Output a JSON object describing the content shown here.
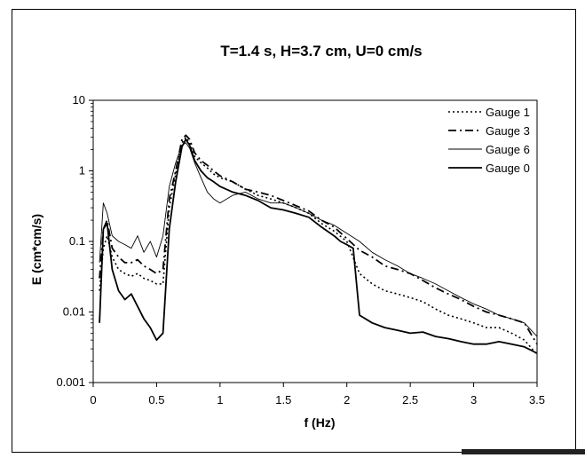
{
  "chart_data": {
    "type": "line",
    "title": "T=1.4 s, H=3.7 cm, U=0 cm/s",
    "xlabel": "f (Hz)",
    "ylabel": "E (cm*cm/s)",
    "xlim": [
      0,
      3.5
    ],
    "ylim": [
      0.001,
      10
    ],
    "yscale": "log",
    "x_ticks": [
      "0",
      "0.5",
      "1",
      "1.5",
      "2",
      "2.5",
      "3",
      "3.5"
    ],
    "y_ticks": [
      "0.001",
      "0.01",
      "0.1",
      "1",
      "10"
    ],
    "grid": false,
    "legend_position": "top-right",
    "series": [
      {
        "name": "Gauge 1",
        "style": "dotted",
        "x": [
          0.05,
          0.08,
          0.11,
          0.15,
          0.2,
          0.25,
          0.3,
          0.35,
          0.4,
          0.45,
          0.5,
          0.55,
          0.6,
          0.65,
          0.7,
          0.73,
          0.76,
          0.8,
          0.85,
          0.9,
          0.95,
          1.0,
          1.1,
          1.2,
          1.3,
          1.4,
          1.5,
          1.6,
          1.7,
          1.8,
          1.9,
          2.0,
          2.1,
          2.2,
          2.3,
          2.4,
          2.5,
          2.6,
          2.7,
          2.8,
          2.9,
          3.0,
          3.1,
          3.2,
          3.3,
          3.4,
          3.5
        ],
        "y": [
          0.02,
          0.08,
          0.12,
          0.06,
          0.04,
          0.035,
          0.032,
          0.035,
          0.03,
          0.028,
          0.025,
          0.025,
          0.3,
          0.9,
          2.5,
          3.0,
          2.5,
          1.6,
          1.3,
          1.1,
          0.9,
          0.8,
          0.7,
          0.55,
          0.45,
          0.4,
          0.35,
          0.3,
          0.25,
          0.18,
          0.14,
          0.1,
          0.035,
          0.025,
          0.02,
          0.018,
          0.016,
          0.014,
          0.011,
          0.009,
          0.008,
          0.007,
          0.006,
          0.006,
          0.005,
          0.004,
          0.0025
        ]
      },
      {
        "name": "Gauge 3",
        "style": "dashed",
        "x": [
          0.05,
          0.08,
          0.11,
          0.15,
          0.2,
          0.25,
          0.3,
          0.35,
          0.4,
          0.45,
          0.5,
          0.55,
          0.6,
          0.65,
          0.7,
          0.73,
          0.76,
          0.8,
          0.85,
          0.9,
          0.95,
          1.0,
          1.1,
          1.2,
          1.3,
          1.4,
          1.5,
          1.6,
          1.7,
          1.8,
          1.9,
          2.0,
          2.1,
          2.2,
          2.3,
          2.4,
          2.5,
          2.6,
          2.7,
          2.8,
          2.9,
          3.0,
          3.1,
          3.2,
          3.3,
          3.4,
          3.5
        ],
        "y": [
          0.03,
          0.15,
          0.2,
          0.08,
          0.06,
          0.05,
          0.05,
          0.055,
          0.045,
          0.04,
          0.035,
          0.04,
          0.4,
          1.0,
          2.8,
          3.2,
          2.8,
          1.8,
          1.4,
          1.2,
          1.0,
          0.85,
          0.7,
          0.55,
          0.5,
          0.45,
          0.38,
          0.32,
          0.27,
          0.2,
          0.16,
          0.11,
          0.075,
          0.06,
          0.045,
          0.04,
          0.035,
          0.028,
          0.022,
          0.018,
          0.015,
          0.012,
          0.01,
          0.009,
          0.008,
          0.007,
          0.0035
        ]
      },
      {
        "name": "Gauge 6",
        "style": "thin",
        "x": [
          0.05,
          0.08,
          0.11,
          0.15,
          0.2,
          0.25,
          0.3,
          0.35,
          0.4,
          0.45,
          0.5,
          0.55,
          0.6,
          0.65,
          0.7,
          0.73,
          0.76,
          0.8,
          0.85,
          0.9,
          0.95,
          1.0,
          1.1,
          1.2,
          1.3,
          1.4,
          1.5,
          1.6,
          1.7,
          1.8,
          1.9,
          2.0,
          2.1,
          2.2,
          2.3,
          2.4,
          2.5,
          2.6,
          2.7,
          2.8,
          2.9,
          3.0,
          3.1,
          3.2,
          3.3,
          3.4,
          3.5
        ],
        "y": [
          0.05,
          0.35,
          0.25,
          0.12,
          0.1,
          0.09,
          0.08,
          0.12,
          0.07,
          0.1,
          0.06,
          0.12,
          0.6,
          1.3,
          2.3,
          2.5,
          2.1,
          1.3,
          0.8,
          0.5,
          0.4,
          0.35,
          0.45,
          0.5,
          0.4,
          0.35,
          0.35,
          0.3,
          0.25,
          0.2,
          0.17,
          0.13,
          0.1,
          0.07,
          0.055,
          0.045,
          0.035,
          0.03,
          0.025,
          0.02,
          0.016,
          0.013,
          0.011,
          0.009,
          0.008,
          0.007,
          0.0045
        ]
      },
      {
        "name": "Gauge 0",
        "style": "thick",
        "x": [
          0.05,
          0.08,
          0.11,
          0.15,
          0.2,
          0.25,
          0.3,
          0.35,
          0.4,
          0.45,
          0.5,
          0.55,
          0.6,
          0.65,
          0.7,
          0.73,
          0.76,
          0.8,
          0.85,
          0.9,
          0.95,
          1.0,
          1.1,
          1.2,
          1.3,
          1.4,
          1.5,
          1.6,
          1.7,
          1.8,
          1.9,
          1.95,
          2.0,
          2.05,
          2.1,
          2.2,
          2.3,
          2.4,
          2.5,
          2.6,
          2.7,
          2.8,
          2.9,
          3.0,
          3.1,
          3.2,
          3.3,
          3.4,
          3.5
        ],
        "y": [
          0.007,
          0.15,
          0.18,
          0.04,
          0.02,
          0.015,
          0.018,
          0.012,
          0.008,
          0.006,
          0.004,
          0.005,
          0.15,
          0.7,
          2.2,
          2.8,
          2.3,
          1.4,
          1.0,
          0.8,
          0.7,
          0.6,
          0.5,
          0.45,
          0.38,
          0.3,
          0.28,
          0.25,
          0.22,
          0.16,
          0.12,
          0.1,
          0.09,
          0.08,
          0.009,
          0.007,
          0.006,
          0.0055,
          0.005,
          0.0052,
          0.0045,
          0.0042,
          0.0038,
          0.0035,
          0.0035,
          0.0038,
          0.0035,
          0.0032,
          0.0026
        ]
      }
    ]
  }
}
